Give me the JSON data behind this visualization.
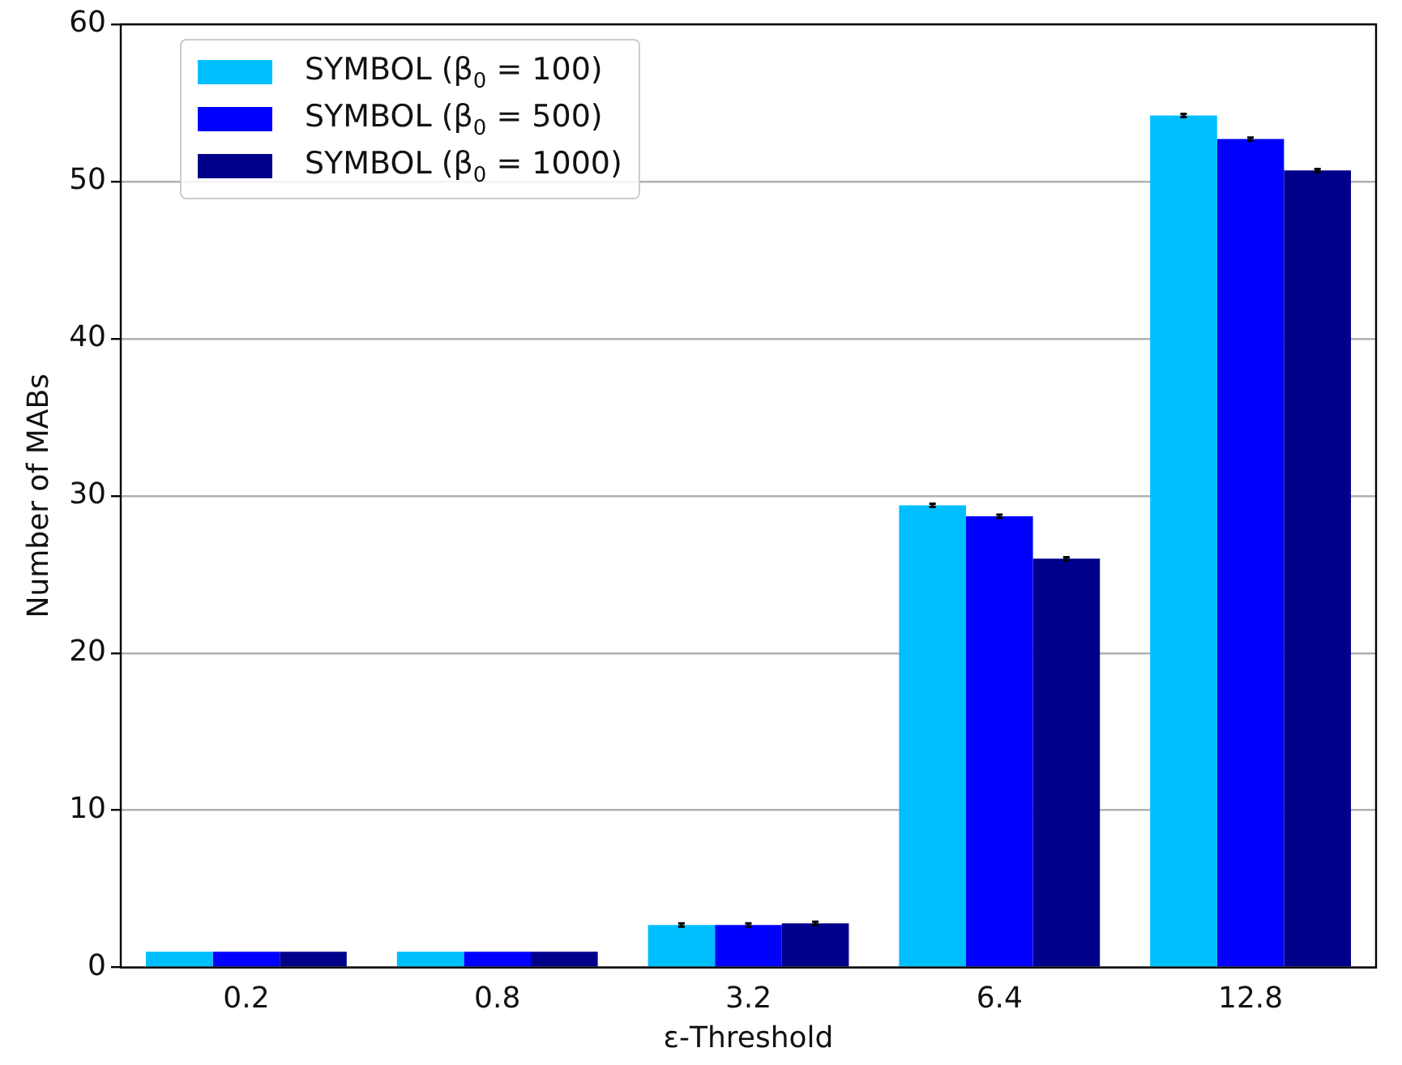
{
  "chart_data": {
    "type": "bar",
    "xlabel": "ε-Threshold",
    "ylabel": "Number of MABs",
    "categories": [
      "0.2",
      "0.8",
      "3.2",
      "6.4",
      "12.8"
    ],
    "series": [
      {
        "name": "SYMBOL (β$_{0}$ = 100)",
        "color": "#00bfff",
        "values": [
          1,
          1,
          2.7,
          29.4,
          54.2
        ],
        "errors": [
          null,
          null,
          0.1,
          0.1,
          0.1
        ]
      },
      {
        "name": "SYMBOL (β$_{0}$ = 500)",
        "color": "#0000ff",
        "values": [
          1,
          1,
          2.7,
          28.7,
          52.7
        ],
        "errors": [
          null,
          null,
          0.1,
          0.1,
          0.1
        ]
      },
      {
        "name": "SYMBOL (β$_{0}$ = 1000)",
        "color": "#00008b",
        "values": [
          1,
          1,
          2.8,
          26.0,
          50.7
        ],
        "errors": [
          null,
          null,
          0.1,
          0.1,
          0.1
        ]
      }
    ],
    "ylim": [
      0,
      60
    ],
    "yticks": [
      0,
      10,
      20,
      30,
      40,
      50,
      60
    ],
    "grid": "y",
    "legend": "top left"
  }
}
